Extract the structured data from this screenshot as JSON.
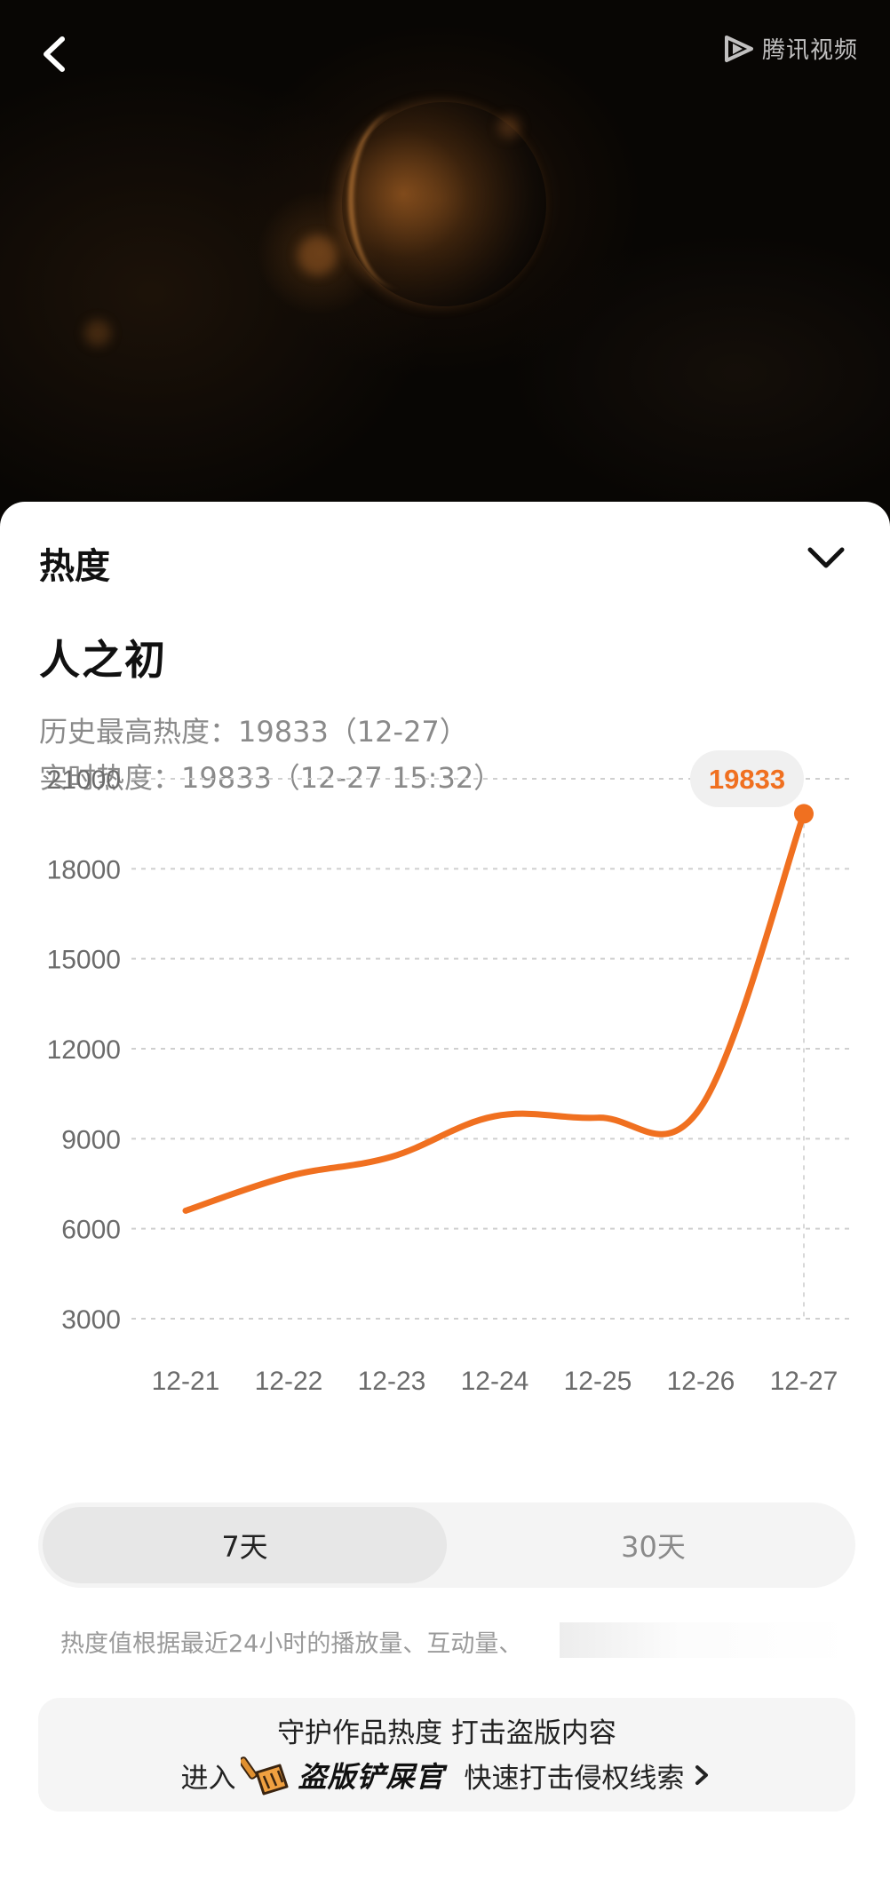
{
  "header": {
    "brand_label": "腾讯视频",
    "back_icon": "back-arrow-icon",
    "brand_icon": "tencent-video-play-icon"
  },
  "sheet": {
    "title": "热度",
    "collapse_icon": "chevron-down-icon",
    "show_title": "人之初",
    "history_high": "历史最高热度：19833（12-27）",
    "realtime": "实时热度：19833（12-27 15:32）"
  },
  "chart_data": {
    "type": "line",
    "categories": [
      "12-21",
      "12-22",
      "12-23",
      "12-24",
      "12-25",
      "12-26",
      "12-27"
    ],
    "series": [
      {
        "values": [
          6600,
          7750,
          8400,
          9750,
          9700,
          10050,
          19833
        ]
      }
    ],
    "y_ticks": [
      3000,
      6000,
      9000,
      12000,
      15000,
      18000,
      21000
    ],
    "ylim": [
      3000,
      21000
    ],
    "y_tick_labels": [
      "3000",
      "6000",
      "9000",
      "12000",
      "15000",
      "18000",
      "21000"
    ],
    "callout_label": "19833",
    "grid": true,
    "line_color": "#f07020",
    "title": "",
    "xlabel": "",
    "ylabel": ""
  },
  "range_tabs": {
    "options": [
      "7天",
      "30天"
    ],
    "selected": "7天"
  },
  "footnote": "热度值根据最近24小时的播放量、互动量、",
  "promo": {
    "line1": "守护作品热度 打击盗版内容",
    "prefix": "进入",
    "brand": "盗版铲屎官",
    "suffix": "快速打击侵权线索",
    "brand_icon": "shovel-icon",
    "arrow_icon": "chevron-right-icon"
  },
  "colors": {
    "accent": "#f07020",
    "grid": "#cfcfcf"
  }
}
